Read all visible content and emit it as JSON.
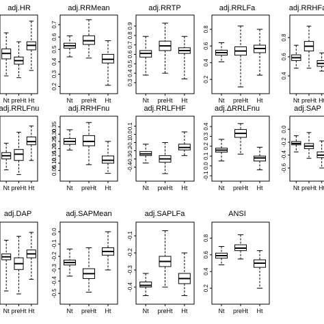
{
  "chart_data": [
    {
      "type": "boxplot",
      "title": "adj.HR",
      "categories": [
        "Nt",
        "preHt",
        "Ht"
      ],
      "yticks": [
        "0.2",
        "0.4",
        "0.6"
      ],
      "ylim": [
        0.0,
        0.8
      ],
      "boxes": [
        {
          "min": 0.16,
          "q1": 0.35,
          "median": 0.41,
          "q3": 0.46,
          "max": 0.64
        },
        {
          "min": 0.14,
          "q1": 0.29,
          "median": 0.33,
          "q3": 0.37,
          "max": 0.54
        },
        {
          "min": 0.22,
          "q1": 0.45,
          "median": 0.5,
          "q3": 0.54,
          "max": 0.77
        }
      ]
    },
    {
      "type": "boxplot",
      "title": "adj.RRMean",
      "categories": [
        "Nt",
        "preHt",
        "Ht"
      ],
      "yticks": [
        "0.2",
        "0.3",
        "0.4",
        "0.5",
        "0.6",
        "0.7"
      ],
      "ylim": [
        0.17,
        0.75
      ],
      "boxes": [
        {
          "min": 0.44,
          "q1": 0.51,
          "median": 0.53,
          "q3": 0.55,
          "max": 0.61
        },
        {
          "min": 0.43,
          "q1": 0.54,
          "median": 0.57,
          "q3": 0.61,
          "max": 0.74
        },
        {
          "min": 0.21,
          "q1": 0.39,
          "median": 0.42,
          "q3": 0.46,
          "max": 0.57
        }
      ]
    },
    {
      "type": "boxplot",
      "title": "adj.RRTP",
      "categories": [
        "Nt",
        "preHt",
        "Ht"
      ],
      "yticks": [
        "0.3",
        "0.4",
        "0.5",
        "0.6",
        "0.7",
        "0.8",
        "0.9"
      ],
      "ylim": [
        0.22,
        0.98
      ],
      "boxes": [
        {
          "min": 0.38,
          "q1": 0.57,
          "median": 0.61,
          "q3": 0.64,
          "max": 0.79
        },
        {
          "min": 0.4,
          "q1": 0.64,
          "median": 0.69,
          "q3": 0.74,
          "max": 0.93
        },
        {
          "min": 0.34,
          "q1": 0.61,
          "median": 0.64,
          "q3": 0.67,
          "max": 0.79
        }
      ]
    },
    {
      "type": "boxplot",
      "title": "adj.RRLFa",
      "categories": [
        "Nt",
        "preHt",
        "Ht"
      ],
      "yticks": [
        "0.2",
        "0.4",
        "0.6",
        "0.8"
      ],
      "ylim": [
        0.07,
        0.93
      ],
      "boxes": [
        {
          "min": 0.41,
          "q1": 0.49,
          "median": 0.52,
          "q3": 0.55,
          "max": 0.64
        },
        {
          "min": 0.11,
          "q1": 0.49,
          "median": 0.54,
          "q3": 0.59,
          "max": 0.84
        },
        {
          "min": 0.25,
          "q1": 0.52,
          "median": 0.57,
          "q3": 0.61,
          "max": 0.8
        }
      ]
    },
    {
      "type": "boxplot",
      "title": "adj.RRHFa",
      "categories": [
        "Nt",
        "preHt",
        "Ht"
      ],
      "yticks": [
        "0.4",
        "0.6",
        "0.8"
      ],
      "ylim": [
        0.25,
        1.0
      ],
      "boxes": [
        {
          "min": 0.48,
          "q1": 0.56,
          "median": 0.59,
          "q3": 0.62,
          "max": 0.72
        },
        {
          "min": 0.48,
          "q1": 0.66,
          "median": 0.71,
          "q3": 0.76,
          "max": 0.92
        },
        {
          "min": 0.45,
          "q1": 0.5,
          "median": 0.53,
          "q3": 0.56,
          "max": 0.64
        }
      ]
    },
    {
      "type": "boxplot",
      "title": "adj.RRLFnu",
      "categories": [
        "Nt",
        "preHt",
        "Ht"
      ],
      "yticks": [
        "0.1",
        "0.2",
        "0.3"
      ],
      "ylim": [
        0.05,
        0.42
      ],
      "boxes": [
        {
          "min": 0.1,
          "q1": 0.17,
          "median": 0.19,
          "q3": 0.21,
          "max": 0.27
        },
        {
          "min": 0.07,
          "q1": 0.16,
          "median": 0.2,
          "q3": 0.23,
          "max": 0.34
        },
        {
          "min": 0.16,
          "q1": 0.26,
          "median": 0.28,
          "q3": 0.31,
          "max": 0.38
        }
      ]
    },
    {
      "type": "boxplot",
      "title": "adj.RRHFnu",
      "categories": [
        "Nt",
        "preHt",
        "Ht"
      ],
      "yticks": [
        "0.05",
        "0.10",
        "0.15",
        "0.20",
        "0.25",
        "0.30",
        "0.35"
      ],
      "ylim": [
        0.0,
        0.4
      ],
      "boxes": [
        {
          "min": 0.19,
          "q1": 0.23,
          "median": 0.25,
          "q3": 0.27,
          "max": 0.33
        },
        {
          "min": 0.09,
          "q1": 0.22,
          "median": 0.25,
          "q3": 0.29,
          "max": 0.38
        },
        {
          "min": 0.03,
          "q1": 0.1,
          "median": 0.12,
          "q3": 0.15,
          "max": 0.25
        }
      ]
    },
    {
      "type": "boxplot",
      "title": "adj.RRLFHF",
      "categories": [
        "Nt",
        "preHt",
        "Ht"
      ],
      "yticks": [
        "-0.4",
        "-0.3",
        "-0.2",
        "-0.1",
        "0.0",
        "0.1"
      ],
      "ylim": [
        -0.53,
        0.18
      ],
      "boxes": [
        {
          "min": -0.35,
          "q1": -0.26,
          "median": -0.24,
          "q3": -0.21,
          "max": -0.12
        },
        {
          "min": -0.48,
          "q1": -0.34,
          "median": -0.3,
          "q3": -0.26,
          "max": -0.1
        },
        {
          "min": -0.26,
          "q1": -0.19,
          "median": -0.16,
          "q3": -0.12,
          "max": 0.03
        }
      ]
    },
    {
      "type": "boxplot",
      "title": "adj.ΔRRLFnu",
      "categories": [
        "Nt",
        "preHt",
        "Ht"
      ],
      "yticks": [
        "-0.1",
        "0.0",
        "0.1",
        "0.2",
        "0.3",
        "0.4"
      ],
      "ylim": [
        -0.12,
        0.47
      ],
      "boxes": [
        {
          "min": 0.05,
          "q1": 0.14,
          "median": 0.16,
          "q3": 0.18,
          "max": 0.27
        },
        {
          "min": 0.12,
          "q1": 0.29,
          "median": 0.33,
          "q3": 0.37,
          "max": 0.43
        },
        {
          "min": -0.04,
          "q1": 0.05,
          "median": 0.08,
          "q3": 0.1,
          "max": 0.19
        }
      ]
    },
    {
      "type": "boxplot",
      "title": "adj.SAP",
      "categories": [
        "Nt",
        "preHt",
        "Ht"
      ],
      "yticks": [
        "-0.6",
        "-0.4",
        "-0.2",
        "0.0"
      ],
      "ylim": [
        -0.75,
        0.15
      ],
      "boxes": [
        {
          "min": -0.35,
          "q1": -0.24,
          "median": -0.22,
          "q3": -0.19,
          "max": -0.1
        },
        {
          "min": -0.45,
          "q1": -0.3,
          "median": -0.26,
          "q3": -0.22,
          "max": -0.05
        },
        {
          "min": -0.6,
          "q1": -0.44,
          "median": -0.4,
          "q3": -0.35,
          "max": -0.18
        }
      ]
    },
    {
      "type": "boxplot",
      "title": "adj.DAP",
      "categories": [
        "Nt",
        "preHt",
        "Ht"
      ],
      "yticks": [
        "-0.6",
        "-0.4",
        "-0.2",
        "0.0"
      ],
      "ylim": [
        -0.72,
        0.05
      ],
      "boxes": [
        {
          "min": -0.62,
          "q1": -0.3,
          "median": -0.27,
          "q3": -0.24,
          "max": -0.1
        },
        {
          "min": -0.65,
          "q1": -0.4,
          "median": -0.34,
          "q3": -0.28,
          "max": -0.06
        },
        {
          "min": -0.5,
          "q1": -0.28,
          "median": -0.24,
          "q3": -0.2,
          "max": -0.02
        }
      ]
    },
    {
      "type": "boxplot",
      "title": "adj.SAPMean",
      "categories": [
        "Nt",
        "preHt",
        "Ht"
      ],
      "yticks": [
        "-0.5",
        "-0.4",
        "-0.3",
        "-0.2",
        "-0.1",
        "0.0"
      ],
      "ylim": [
        -0.56,
        0.05
      ],
      "boxes": [
        {
          "min": -0.36,
          "q1": -0.27,
          "median": -0.25,
          "q3": -0.23,
          "max": -0.14
        },
        {
          "min": -0.49,
          "q1": -0.38,
          "median": -0.34,
          "q3": -0.3,
          "max": -0.13
        },
        {
          "min": -0.31,
          "q1": -0.19,
          "median": -0.16,
          "q3": -0.13,
          "max": 0.0
        }
      ]
    },
    {
      "type": "boxplot",
      "title": "adj.SAPLFa",
      "categories": [
        "Nt",
        "preHt",
        "Ht"
      ],
      "yticks": [
        "-0.4",
        "-0.3",
        "-0.2",
        "-0.1"
      ],
      "ylim": [
        -0.48,
        -0.04
      ],
      "boxes": [
        {
          "min": -0.45,
          "q1": -0.4,
          "median": -0.39,
          "q3": -0.37,
          "max": -0.32
        },
        {
          "min": -0.4,
          "q1": -0.28,
          "median": -0.25,
          "q3": -0.22,
          "max": -0.07
        },
        {
          "min": -0.45,
          "q1": -0.38,
          "median": -0.35,
          "q3": -0.32,
          "max": -0.2
        }
      ]
    },
    {
      "type": "boxplot",
      "title": "ANSI",
      "categories": [
        "Nt",
        "preHt",
        "Ht"
      ],
      "yticks": [
        "0.2",
        "0.4",
        "0.6",
        "0.8"
      ],
      "ylim": [
        0.05,
        0.95
      ],
      "boxes": [
        {
          "min": 0.48,
          "q1": 0.56,
          "median": 0.59,
          "q3": 0.62,
          "max": 0.7
        },
        {
          "min": 0.55,
          "q1": 0.65,
          "median": 0.68,
          "q3": 0.72,
          "max": 0.84
        },
        {
          "min": 0.2,
          "q1": 0.45,
          "median": 0.5,
          "q3": 0.54,
          "max": 0.65
        }
      ]
    }
  ]
}
